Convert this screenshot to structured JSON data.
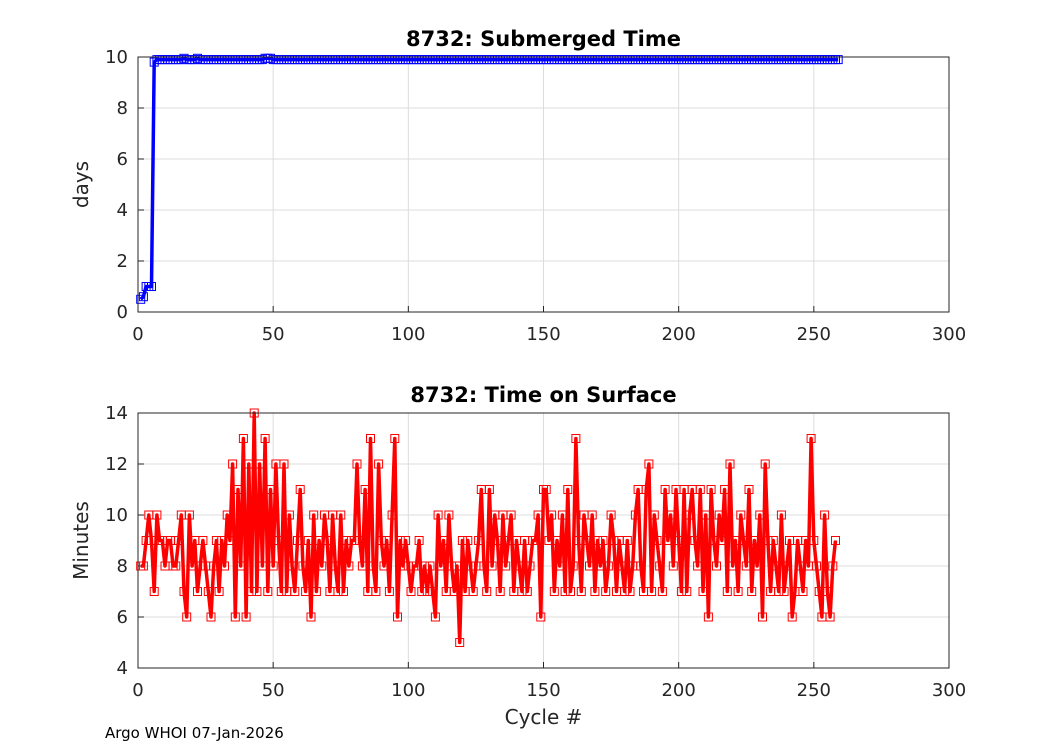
{
  "footer": "Argo WHOI 07-Jan-2026",
  "chart_data": [
    {
      "type": "line",
      "title": "8732: Submerged Time",
      "xlabel": "",
      "ylabel": "days",
      "xlim": [
        0,
        300
      ],
      "ylim": [
        0,
        10
      ],
      "xticks": [
        0,
        50,
        100,
        150,
        200,
        250,
        300
      ],
      "yticks": [
        0,
        2,
        4,
        6,
        8,
        10
      ],
      "grid": true,
      "color": "#0000ff",
      "marker": "square",
      "series": [
        {
          "x_start": 1,
          "values": [
            0.5,
            0.6,
            1.0,
            1.0,
            1.0,
            9.8,
            9.9,
            9.9,
            9.9,
            9.9,
            9.9,
            9.9,
            9.9,
            9.9,
            9.9,
            9.9,
            9.95,
            9.9,
            9.9,
            9.9,
            9.9,
            9.95,
            9.9,
            9.9,
            9.9,
            9.9,
            9.9,
            9.9,
            9.9,
            9.9,
            9.9,
            9.9,
            9.9,
            9.9,
            9.9,
            9.9,
            9.9,
            9.9,
            9.9,
            9.9,
            9.9,
            9.9,
            9.9,
            9.9,
            9.9,
            9.9,
            9.95,
            9.95,
            9.95,
            9.9,
            9.9,
            9.9,
            9.9,
            9.9,
            9.9,
            9.9,
            9.9,
            9.9
          ],
          "tail_value": 9.9,
          "x_end": 259
        }
      ]
    },
    {
      "type": "line",
      "title": "8732: Time on Surface",
      "xlabel": "Cycle #",
      "ylabel": "Minutes",
      "xlim": [
        0,
        300
      ],
      "ylim": [
        4,
        14
      ],
      "xticks": [
        0,
        50,
        100,
        150,
        200,
        250,
        300
      ],
      "yticks": [
        4,
        6,
        8,
        10,
        12,
        14
      ],
      "grid": true,
      "color": "#ff0000",
      "marker": "square",
      "series": [
        {
          "x_start": 1,
          "values": [
            8,
            8,
            9,
            10,
            9,
            7,
            10,
            9,
            9,
            8,
            9,
            9,
            8,
            8,
            9,
            10,
            7,
            6,
            10,
            8,
            9,
            7,
            8,
            9,
            8,
            7,
            6,
            8,
            9,
            7,
            9,
            8,
            10,
            9,
            12,
            6,
            11,
            8,
            13,
            6,
            12,
            7,
            14,
            7,
            12,
            8,
            13,
            7,
            11,
            8,
            12,
            9,
            7,
            12,
            7,
            10,
            8,
            7,
            9,
            11,
            8,
            7,
            9,
            6,
            10,
            7,
            9,
            8,
            10,
            9,
            7,
            10,
            8,
            7,
            10,
            7,
            9,
            8,
            9,
            9,
            12,
            9,
            8,
            11,
            7,
            13,
            8,
            7,
            12,
            9,
            8,
            9,
            7,
            10,
            13,
            6,
            9,
            8,
            9,
            8,
            7,
            8,
            8,
            9,
            7,
            8,
            7,
            8,
            7,
            6,
            10,
            8,
            9,
            7,
            10,
            8,
            7,
            8,
            5,
            9,
            7,
            9,
            8,
            7,
            8,
            9,
            11,
            8,
            7,
            11,
            8,
            10,
            9,
            7,
            10,
            8,
            9,
            10,
            7,
            9,
            8,
            7,
            9,
            7,
            8,
            9,
            9,
            10,
            6,
            11,
            11,
            9,
            10,
            7,
            9,
            8,
            10,
            7,
            11,
            7,
            8,
            13,
            9,
            7,
            10,
            9,
            8,
            10,
            7,
            9,
            8,
            9,
            7,
            8,
            10,
            9,
            7,
            9,
            8,
            7,
            9,
            7,
            8,
            10,
            11,
            8,
            7,
            11,
            12,
            7,
            10,
            9,
            8,
            7,
            11,
            9,
            10,
            8,
            11,
            9,
            7,
            11,
            7,
            10,
            11,
            9,
            8,
            11,
            7,
            10,
            6,
            11,
            9,
            8,
            10,
            9,
            11,
            7,
            12,
            8,
            9,
            7,
            10,
            9,
            8,
            11,
            7,
            9,
            8,
            10,
            6,
            12,
            9,
            7,
            9,
            8,
            7,
            10,
            7,
            8,
            9,
            6,
            7,
            9,
            8,
            7,
            9,
            8,
            13,
            9,
            8,
            7,
            6,
            10,
            7,
            6,
            8,
            9
          ]
        }
      ]
    }
  ]
}
